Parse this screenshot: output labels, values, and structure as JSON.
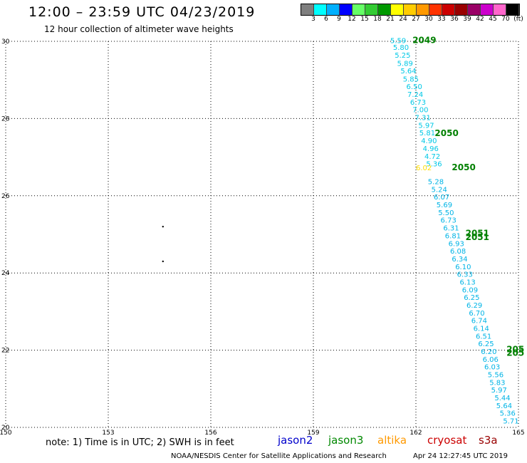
{
  "header": {
    "title": "12:00 – 23:59 UTC 04/23/2019",
    "subtitle": "12 hour collection of altimeter wave heights"
  },
  "colorbar": {
    "colors": [
      "#7f7f7f",
      "#00ffff",
      "#00b0ff",
      "#0000ff",
      "#66ff66",
      "#33cc33",
      "#009900",
      "#ffff00",
      "#ffcc00",
      "#ff9900",
      "#ff3300",
      "#cc0000",
      "#990000",
      "#990066",
      "#cc00cc",
      "#ff66cc",
      "#000000"
    ],
    "labels": [
      "3",
      "6",
      "9",
      "12",
      "15",
      "18",
      "21",
      "24",
      "27",
      "30",
      "33",
      "36",
      "39",
      "42",
      "45",
      "70",
      "(ft)"
    ]
  },
  "map": {
    "lat_ticks": [
      "30",
      "28",
      "26",
      "24",
      "22",
      "20"
    ],
    "lon_ticks": [
      "150",
      "153",
      "156",
      "159",
      "162",
      "165"
    ],
    "lat_range": [
      20,
      30
    ],
    "lon_range": [
      150,
      165
    ],
    "grid": "dotted",
    "tracks": [
      {
        "mission": "jason3",
        "color": "#00c8e6",
        "labels": [
          {
            "lat": 29.95,
            "lon": 161.25,
            "text": "5.59"
          },
          {
            "lat": 29.78,
            "lon": 161.33,
            "text": "5.80"
          },
          {
            "lat": 29.58,
            "lon": 161.38,
            "text": "5.25"
          },
          {
            "lat": 29.36,
            "lon": 161.45,
            "text": "5.89"
          },
          {
            "lat": 29.17,
            "lon": 161.55,
            "text": "5.64"
          },
          {
            "lat": 28.96,
            "lon": 161.62,
            "text": "5.85"
          },
          {
            "lat": 28.76,
            "lon": 161.72,
            "text": "6.50"
          },
          {
            "lat": 28.56,
            "lon": 161.75,
            "text": "7.24"
          },
          {
            "lat": 28.36,
            "lon": 161.83,
            "text": "6.73"
          },
          {
            "lat": 28.16,
            "lon": 161.9,
            "text": "7.00"
          },
          {
            "lat": 27.96,
            "lon": 161.97,
            "text": "7.31"
          },
          {
            "lat": 27.76,
            "lon": 162.07,
            "text": "5.97"
          },
          {
            "lat": 27.56,
            "lon": 162.1,
            "text": "5.81"
          },
          {
            "lat": 27.36,
            "lon": 162.15,
            "text": "4.90"
          },
          {
            "lat": 27.16,
            "lon": 162.2,
            "text": "4.96"
          },
          {
            "lat": 26.96,
            "lon": 162.25,
            "text": "4.72"
          },
          {
            "lat": 26.76,
            "lon": 162.3,
            "text": "5.36"
          }
        ]
      },
      {
        "mission": "jason3",
        "color": "#00b4e6",
        "labels": [
          {
            "lat": 26.3,
            "lon": 162.35,
            "text": "5.28"
          },
          {
            "lat": 26.1,
            "lon": 162.45,
            "text": "5.24"
          },
          {
            "lat": 25.9,
            "lon": 162.52,
            "text": "6.07"
          },
          {
            "lat": 25.7,
            "lon": 162.6,
            "text": "5.69"
          },
          {
            "lat": 25.5,
            "lon": 162.65,
            "text": "5.50"
          },
          {
            "lat": 25.3,
            "lon": 162.72,
            "text": "6.73"
          },
          {
            "lat": 25.1,
            "lon": 162.8,
            "text": "6.31"
          },
          {
            "lat": 24.9,
            "lon": 162.85,
            "text": "6.81"
          },
          {
            "lat": 24.7,
            "lon": 162.95,
            "text": "6.93"
          },
          {
            "lat": 24.5,
            "lon": 163.0,
            "text": "6.08"
          },
          {
            "lat": 24.3,
            "lon": 163.05,
            "text": "6.34"
          },
          {
            "lat": 24.1,
            "lon": 163.15,
            "text": "6.10"
          },
          {
            "lat": 23.9,
            "lon": 163.2,
            "text": "6.33"
          },
          {
            "lat": 23.7,
            "lon": 163.28,
            "text": "6.13"
          },
          {
            "lat": 23.5,
            "lon": 163.35,
            "text": "6.09"
          },
          {
            "lat": 23.3,
            "lon": 163.4,
            "text": "6.25"
          },
          {
            "lat": 23.1,
            "lon": 163.48,
            "text": "6.29"
          },
          {
            "lat": 22.9,
            "lon": 163.55,
            "text": "6.70"
          },
          {
            "lat": 22.7,
            "lon": 163.62,
            "text": "6.74"
          },
          {
            "lat": 22.5,
            "lon": 163.68,
            "text": "6.14"
          },
          {
            "lat": 22.3,
            "lon": 163.75,
            "text": "6.51"
          },
          {
            "lat": 22.1,
            "lon": 163.82,
            "text": "6.25"
          },
          {
            "lat": 21.9,
            "lon": 163.9,
            "text": "6.20"
          },
          {
            "lat": 21.7,
            "lon": 163.95,
            "text": "6.06"
          },
          {
            "lat": 21.5,
            "lon": 164.0,
            "text": "6.03"
          },
          {
            "lat": 21.3,
            "lon": 164.1,
            "text": "5.56"
          },
          {
            "lat": 21.1,
            "lon": 164.15,
            "text": "5.83"
          },
          {
            "lat": 20.9,
            "lon": 164.2,
            "text": "5.97"
          },
          {
            "lat": 20.7,
            "lon": 164.3,
            "text": "5.44"
          },
          {
            "lat": 20.5,
            "lon": 164.35,
            "text": "5.64"
          },
          {
            "lat": 20.3,
            "lon": 164.45,
            "text": "5.36"
          },
          {
            "lat": 20.1,
            "lon": 164.55,
            "text": "5.71"
          }
        ]
      },
      {
        "mission": "altika",
        "color": "#ffdd00",
        "labels": [
          {
            "lat": 26.66,
            "lon": 162.0,
            "text": "6.02"
          }
        ]
      }
    ],
    "time_labels": [
      {
        "lat": 29.95,
        "lon": 161.9,
        "text": "2049"
      },
      {
        "lat": 27.55,
        "lon": 162.55,
        "text": "2050"
      },
      {
        "lat": 26.66,
        "lon": 163.05,
        "text": "2050"
      },
      {
        "lat": 24.85,
        "lon": 163.45,
        "text": "2051"
      },
      {
        "lat": 24.95,
        "lon": 163.45,
        "text": "2051"
      },
      {
        "lat": 21.95,
        "lon": 164.65,
        "text": "205"
      },
      {
        "lat": 21.85,
        "lon": 164.65,
        "text": "205"
      }
    ],
    "time_label_color": "#008000",
    "dots": [
      {
        "lat": 25.2,
        "lon": 154.6
      },
      {
        "lat": 24.3,
        "lon": 154.6
      }
    ]
  },
  "footer": {
    "note": "note: 1) Time is in UTC; 2) SWH is in feet",
    "missions": [
      {
        "name": "jason2",
        "color": "#0000cc"
      },
      {
        "name": "jason3",
        "color": "#008800"
      },
      {
        "name": "altika",
        "color": "#ff9900"
      },
      {
        "name": "cryosat",
        "color": "#cc0000"
      },
      {
        "name": "s3a",
        "color": "#990000"
      }
    ],
    "credit": "NOAA/NESDIS Center for Satellite Applications and Research",
    "timestamp": "Apr 24 12:27:45 UTC 2019"
  }
}
